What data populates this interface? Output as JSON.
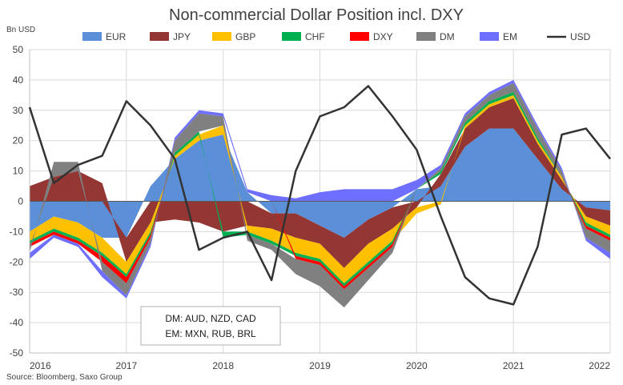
{
  "chart_data": {
    "type": "area",
    "title": "Non-commercial Dollar Position incl. DXY",
    "ylabel": "Bn USD",
    "source": "Source: Bloomberg, Saxo Group",
    "ylim": [
      -50,
      50
    ],
    "yticks": [
      -50,
      -40,
      -30,
      -20,
      -10,
      0,
      10,
      20,
      30,
      40,
      50
    ],
    "xlim": [
      2016.0,
      2022.0
    ],
    "xticks": [
      "2016",
      "2017",
      "2018",
      "2019",
      "2020",
      "2021",
      "2022"
    ],
    "grid": true,
    "legend_position": "top",
    "colors": {
      "EUR": "#5b8fd8",
      "JPY": "#943634",
      "GBP": "#ffc000",
      "CHF": "#00b050",
      "DXY": "#ff0000",
      "DM": "#808080",
      "EM": "#6f6fff",
      "USD": "#333333"
    },
    "annotation": {
      "line1": "DM: AUD, NZD, CAD",
      "line2": "EM: MXN, RUB, BRL"
    },
    "x": [
      2016.0,
      2016.25,
      2016.5,
      2016.75,
      2017.0,
      2017.25,
      2017.5,
      2017.75,
      2018.0,
      2018.25,
      2018.5,
      2018.75,
      2019.0,
      2019.25,
      2019.5,
      2019.75,
      2020.0,
      2020.25,
      2020.5,
      2020.75,
      2021.0,
      2021.25,
      2021.5,
      2021.75,
      2022.0
    ],
    "series": [
      {
        "name": "EUR",
        "values": [
          -10,
          -5,
          -7,
          -12,
          -12,
          5,
          14,
          20,
          22,
          3,
          -4,
          -4,
          -8,
          -12,
          -6,
          -2,
          4,
          5,
          18,
          24,
          24,
          14,
          4,
          -2,
          -3
        ]
      },
      {
        "name": "JPY",
        "values": [
          5,
          8,
          10,
          6,
          -8,
          -7,
          -6,
          -7,
          -10,
          -8,
          -5,
          -8,
          -6,
          -10,
          -8,
          -7,
          -2,
          4,
          6,
          7,
          10,
          5,
          3,
          -3,
          -5
        ]
      },
      {
        "name": "GBP",
        "values": [
          -3,
          -4,
          -5,
          -5,
          -4,
          -3,
          1,
          2,
          3,
          -2,
          -4,
          -5,
          -5,
          -5,
          -6,
          -4,
          -2,
          -1,
          1,
          1,
          1,
          1,
          1,
          -2,
          -3
        ]
      },
      {
        "name": "CHF",
        "values": [
          -1,
          -1,
          -1,
          -1,
          -1,
          -1,
          1,
          1,
          -2,
          -1,
          -1,
          -1,
          -1,
          -1,
          -1,
          -1,
          0,
          1,
          1,
          1,
          1,
          1,
          0,
          -1,
          -1
        ]
      },
      {
        "name": "DXY",
        "values": [
          -1,
          -1,
          -1,
          -2,
          -2,
          -1,
          0,
          0,
          0,
          0,
          0,
          -1,
          -1,
          -1,
          -1,
          -1,
          0,
          0,
          0,
          0,
          0,
          0,
          0,
          -1,
          -1
        ]
      },
      {
        "name": "DM",
        "values": [
          -2,
          5,
          3,
          -3,
          -4,
          -2,
          4,
          6,
          3,
          -2,
          -2,
          -5,
          -7,
          -6,
          -4,
          -2,
          0,
          1,
          2,
          2,
          3,
          3,
          2,
          -3,
          -4
        ]
      },
      {
        "name": "EM",
        "values": [
          -2,
          -1,
          -1,
          -2,
          -1,
          -1,
          1,
          1,
          1,
          1,
          2,
          1,
          3,
          4,
          4,
          4,
          3,
          1,
          1,
          1,
          1,
          1,
          1,
          -1,
          -2
        ]
      },
      {
        "name": "USD",
        "values": [
          31,
          6,
          12,
          15,
          33,
          25,
          14,
          -16,
          -12,
          -10,
          -26,
          10,
          28,
          31,
          38,
          28,
          17,
          -5,
          -25,
          -32,
          -34,
          -15,
          22,
          24,
          14
        ]
      }
    ]
  }
}
